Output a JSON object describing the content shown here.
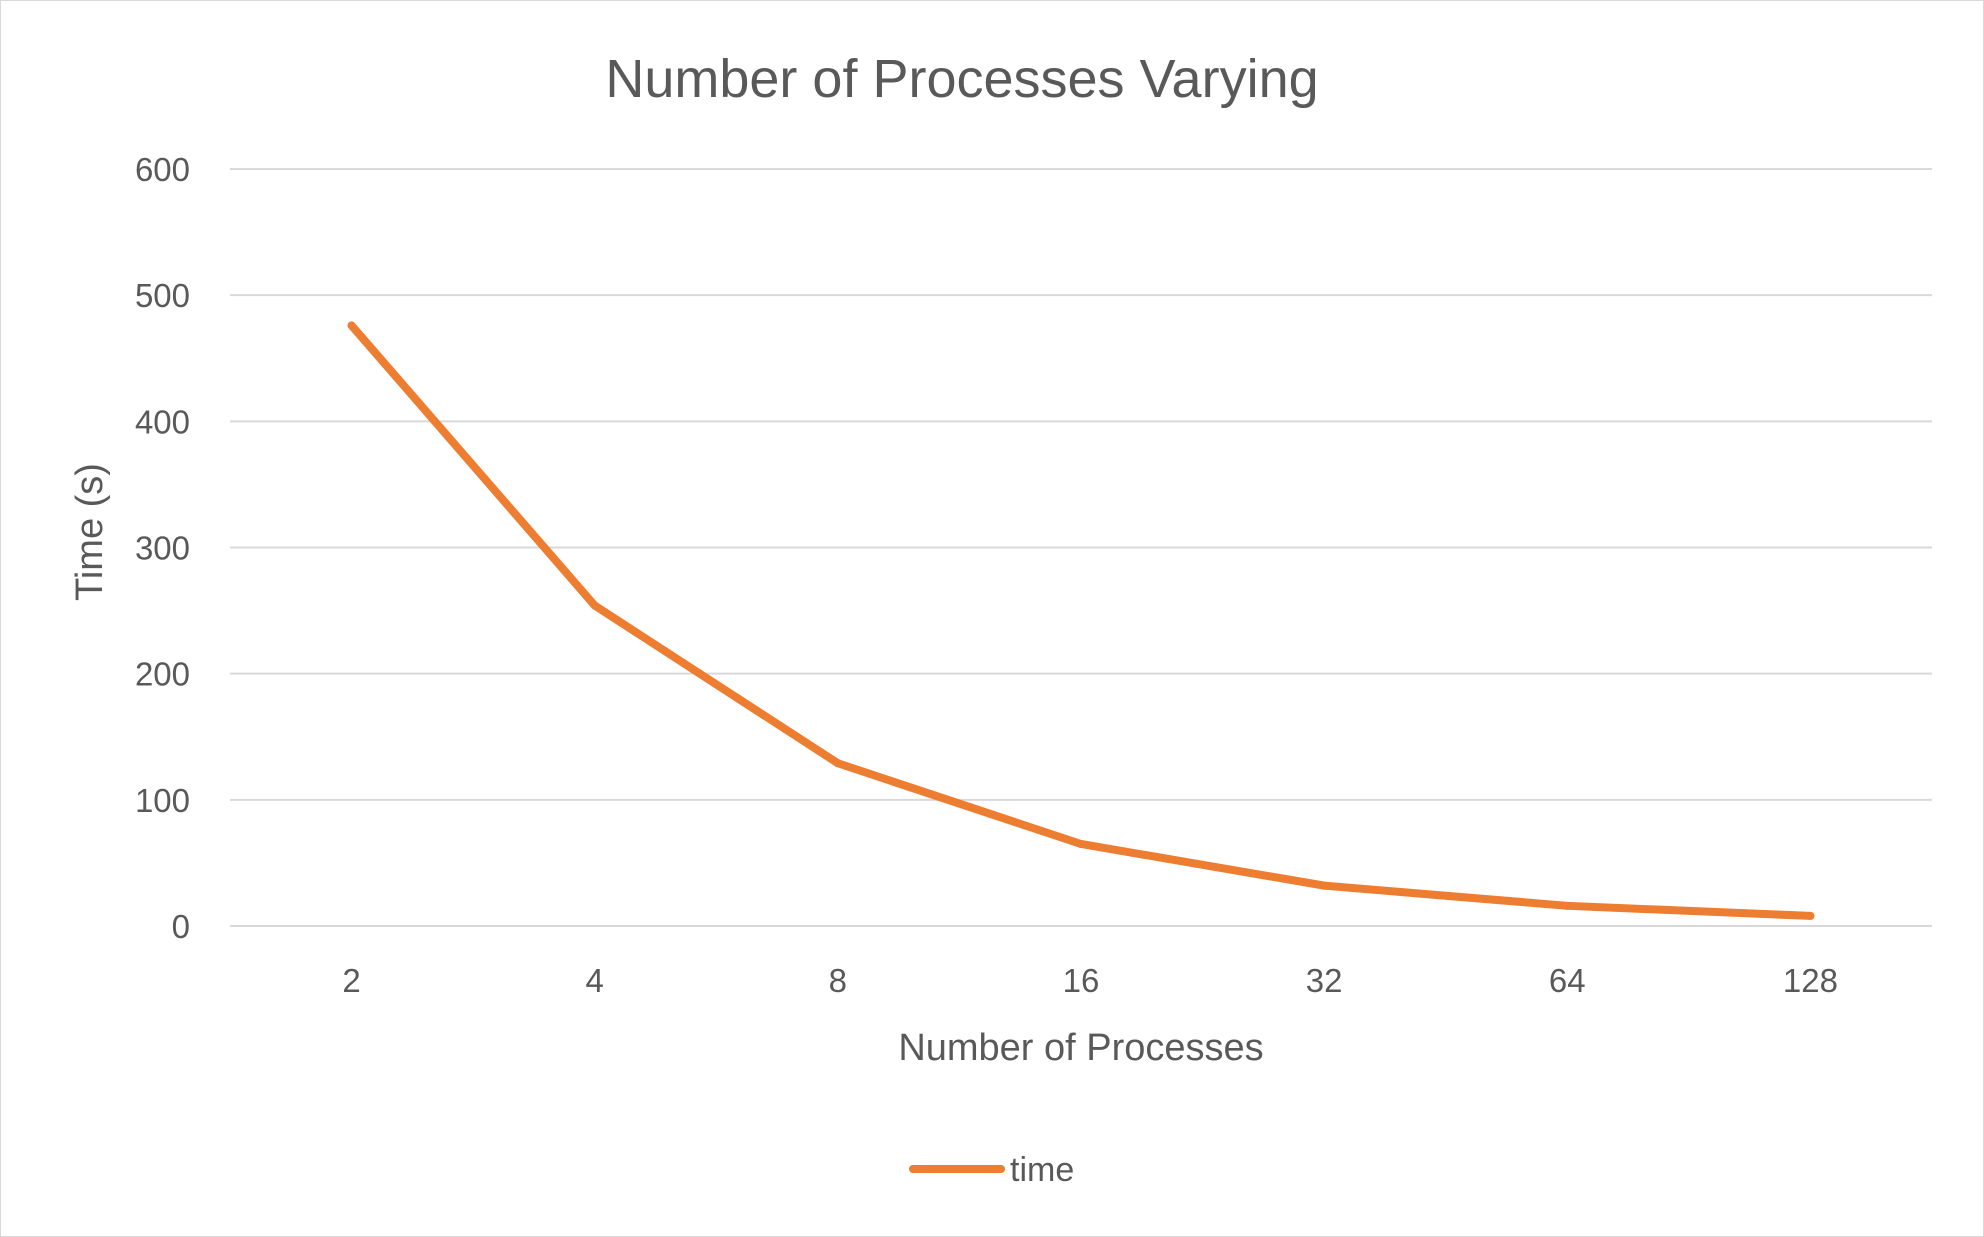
{
  "chart_data": {
    "type": "line",
    "title": "Number of Processes Varying",
    "xlabel": "Number of Processes",
    "ylabel": "Time (s)",
    "categories": [
      "2",
      "4",
      "8",
      "16",
      "32",
      "64",
      "128"
    ],
    "series": [
      {
        "name": "time",
        "color": "#ed7d31",
        "values": [
          476,
          254,
          129,
          65,
          32,
          16,
          8
        ]
      }
    ],
    "ylim": [
      0,
      600
    ],
    "yticks": [
      "0",
      "100",
      "200",
      "300",
      "400",
      "500",
      "600"
    ],
    "grid": true,
    "legend": "bottom"
  }
}
